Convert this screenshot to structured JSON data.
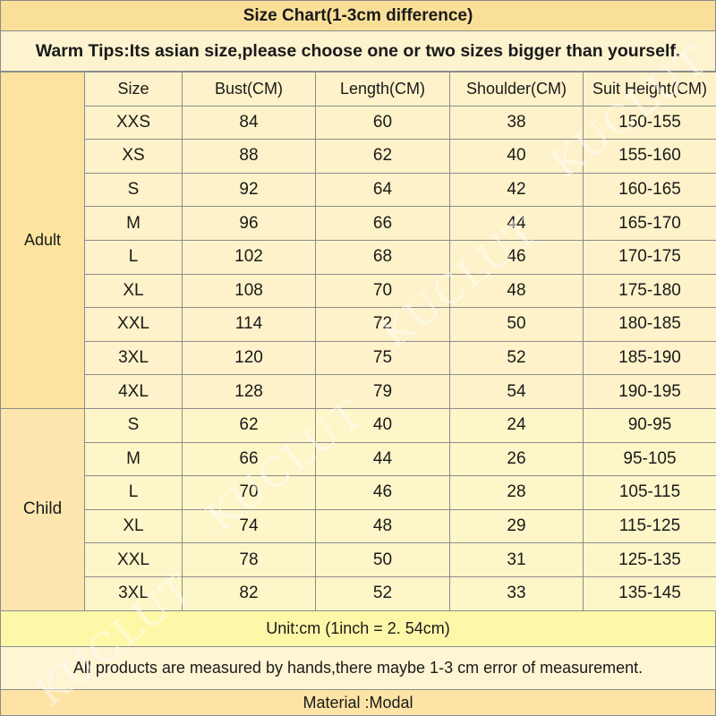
{
  "title": "Size Chart(1-3cm difference)",
  "tips": "Warm Tips:Its asian size,please choose one or two sizes bigger than yourself.",
  "headers": [
    "Size",
    "Bust(CM)",
    "Length(CM)",
    "Shoulder(CM)",
    "Suit Height(CM)"
  ],
  "adult": {
    "label": "Adult",
    "rows": [
      [
        "XXS",
        "84",
        "60",
        "38",
        "150-155"
      ],
      [
        "XS",
        "88",
        "62",
        "40",
        "155-160"
      ],
      [
        "S",
        "92",
        "64",
        "42",
        "160-165"
      ],
      [
        "M",
        "96",
        "66",
        "44",
        "165-170"
      ],
      [
        "L",
        "102",
        "68",
        "46",
        "170-175"
      ],
      [
        "XL",
        "108",
        "70",
        "48",
        "175-180"
      ],
      [
        "XXL",
        "114",
        "72",
        "50",
        "180-185"
      ],
      [
        "3XL",
        "120",
        "75",
        "52",
        "185-190"
      ],
      [
        "4XL",
        "128",
        "79",
        "54",
        "190-195"
      ]
    ]
  },
  "child": {
    "label": "Child",
    "rows": [
      [
        "S",
        "62",
        "40",
        "24",
        "90-95"
      ],
      [
        "M",
        "66",
        "44",
        "26",
        "95-105"
      ],
      [
        "L",
        "70",
        "46",
        "28",
        "105-115"
      ],
      [
        "XL",
        "74",
        "48",
        "29",
        "115-125"
      ],
      [
        "XXL",
        "78",
        "50",
        "31",
        "125-135"
      ],
      [
        "3XL",
        "82",
        "52",
        "33",
        "135-145"
      ]
    ]
  },
  "unit": "Unit:cm (1inch = 2. 54cm)",
  "note": "All products are measured by hands,there maybe 1-3 cm error of measurement.",
  "material": "Material :Modal",
  "watermark": "KUCLUT"
}
